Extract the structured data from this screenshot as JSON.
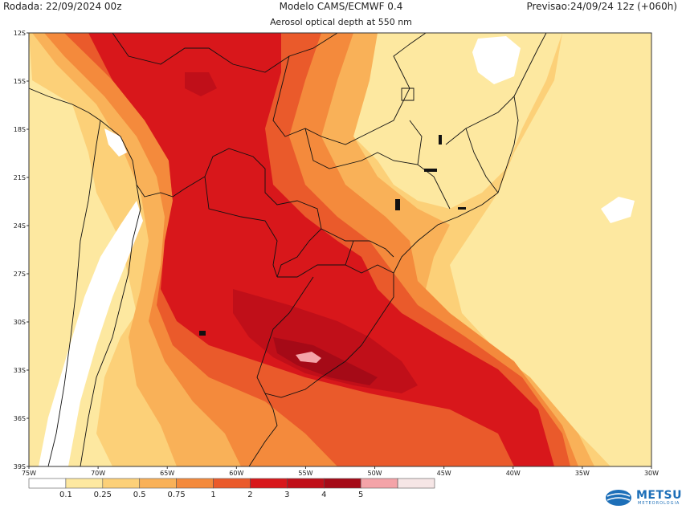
{
  "header": {
    "run": "Rodada: 22/09/2024 00z",
    "model": "Modelo CAMS/ECMWF 0.4",
    "forecast": "Previsao:24/09/24 12z (+060h)",
    "subtitle": "Aerosol optical depth at 550 nm"
  },
  "map": {
    "lon_range": [
      -75,
      -30
    ],
    "lat_range": [
      -39,
      -12
    ],
    "lat_ticks": [
      {
        "value": -12,
        "label": "12S"
      },
      {
        "value": -15,
        "label": "15S"
      },
      {
        "value": -18,
        "label": "18S"
      },
      {
        "value": -21,
        "label": "21S"
      },
      {
        "value": -24,
        "label": "24S"
      },
      {
        "value": -27,
        "label": "27S"
      },
      {
        "value": -30,
        "label": "30S"
      },
      {
        "value": -33,
        "label": "33S"
      },
      {
        "value": -36,
        "label": "36S"
      },
      {
        "value": -39,
        "label": "39S"
      }
    ],
    "lon_ticks": [
      {
        "value": -75,
        "label": "75W"
      },
      {
        "value": -70,
        "label": "70W"
      },
      {
        "value": -65,
        "label": "65W"
      },
      {
        "value": -60,
        "label": "60W"
      },
      {
        "value": -55,
        "label": "55W"
      },
      {
        "value": -50,
        "label": "50W"
      },
      {
        "value": -45,
        "label": "45W"
      },
      {
        "value": -40,
        "label": "40W"
      },
      {
        "value": -35,
        "label": "35W"
      },
      {
        "value": -30,
        "label": "30W"
      }
    ]
  },
  "colorbar": {
    "colors": [
      "#ffffff",
      "#fde8a0",
      "#fcd078",
      "#f9b158",
      "#f48a3c",
      "#ea5a2b",
      "#d8171b",
      "#c00f19",
      "#a50a17",
      "#f4a3a8",
      "#f6e6e6"
    ],
    "labels": [
      "0.1",
      "0.25",
      "0.5",
      "0.75",
      "1",
      "2",
      "3",
      "4",
      "5"
    ]
  },
  "logo": {
    "name": "METSUL",
    "tagline": "METEOROLOGIA"
  }
}
